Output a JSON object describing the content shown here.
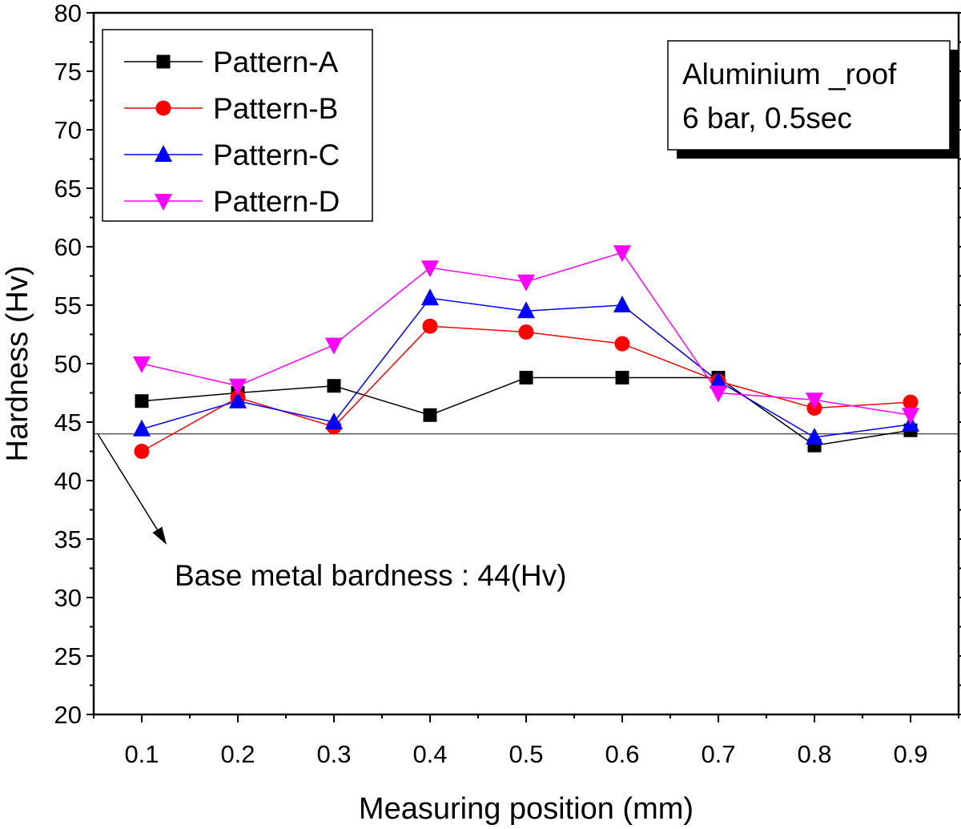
{
  "chart_data": {
    "type": "line",
    "xlabel": "Measuring position (mm)",
    "ylabel": "Hardness (Hv)",
    "xlim": [
      0.05,
      0.95
    ],
    "ylim": [
      20,
      80
    ],
    "xticks": [
      "0.1",
      "0.2",
      "0.3",
      "0.4",
      "0.5",
      "0.6",
      "0.7",
      "0.8",
      "0.9"
    ],
    "yticks": [
      "20",
      "25",
      "30",
      "35",
      "40",
      "45",
      "50",
      "55",
      "60",
      "65",
      "70",
      "75",
      "80"
    ],
    "x": [
      0.1,
      0.2,
      0.3,
      0.4,
      0.5,
      0.6,
      0.7,
      0.8,
      0.9
    ],
    "series": [
      {
        "name": "Pattern-A",
        "color": "#000000",
        "marker": "square",
        "values": [
          46.8,
          47.5,
          48.1,
          45.6,
          48.8,
          48.8,
          48.8,
          43.0,
          44.3
        ]
      },
      {
        "name": "Pattern-B",
        "color": "#ff0000",
        "marker": "circle",
        "values": [
          42.5,
          47.1,
          44.6,
          53.2,
          52.7,
          51.7,
          48.5,
          46.2,
          46.7
        ]
      },
      {
        "name": "Pattern-C",
        "color": "#0000ff",
        "marker": "triangle-up",
        "values": [
          44.4,
          46.8,
          45.0,
          55.6,
          54.5,
          55.0,
          48.5,
          43.7,
          44.8
        ]
      },
      {
        "name": "Pattern-D",
        "color": "#ff00ff",
        "marker": "triangle-down",
        "values": [
          50.0,
          48.1,
          51.6,
          58.2,
          57.0,
          59.5,
          47.5,
          46.9,
          45.6
        ]
      }
    ],
    "reference_line": {
      "value": 44,
      "label": "Base metal bardness : 44(Hv)"
    },
    "annotation_box": {
      "line1": "Aluminium _roof",
      "line2": "6 bar, 0.5sec"
    },
    "legend_position": "top-left",
    "grid": false
  }
}
